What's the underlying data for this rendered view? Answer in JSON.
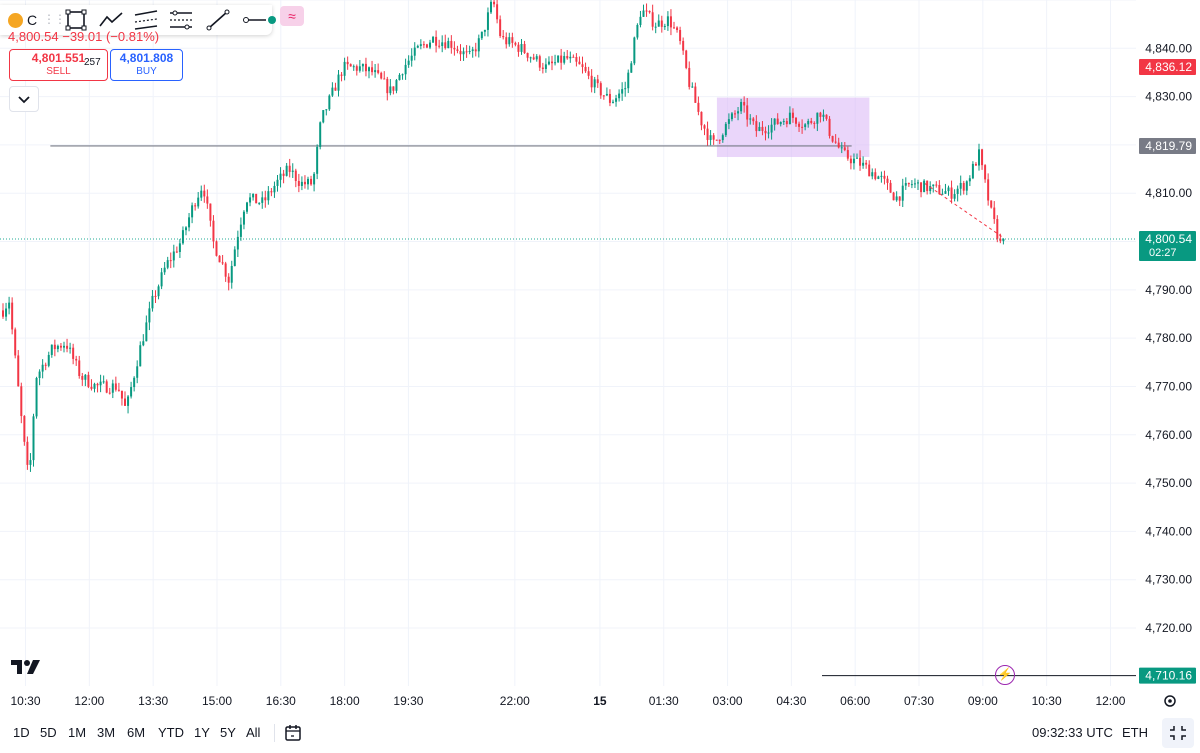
{
  "header": {
    "symbol_letter": "C",
    "last_price": "4,800.54",
    "change": "−39.01 (−0.81%)",
    "sell_price": "4,801.551",
    "sell_label": "SELL",
    "spread": "257",
    "buy_price": "4,801.808",
    "buy_label": "BUY"
  },
  "toolbar": {
    "tools": [
      "rectangle-icon",
      "path-icon",
      "parallel-channel-icon",
      "regression-icon",
      "trend-line-icon",
      "horizontal-ray-icon"
    ],
    "accent": "#9c27b0"
  },
  "colors": {
    "up": "#089981",
    "down": "#f23645",
    "stop_zone": "#f7a5ab",
    "profit_zone": "#a8dccf",
    "range_box": "#d9b4f5",
    "price_line": "#22ab94"
  },
  "chart_data": {
    "type": "candlestick",
    "ylim": [
      4708,
      4850
    ],
    "y_ticks": [
      "4,840.00",
      "4,830.00",
      "4,810.00",
      "4,800.00",
      "4,790.00",
      "4,780.00",
      "4,770.00",
      "4,760.00",
      "4,750.00",
      "4,740.00",
      "4,730.00",
      "4,720.00"
    ],
    "y_tick_values": [
      4840,
      4830,
      4810,
      4800,
      4790,
      4780,
      4770,
      4760,
      4750,
      4740,
      4730,
      4720
    ],
    "x_ticks": [
      "10:30",
      "12:00",
      "13:30",
      "15:00",
      "16:30",
      "18:00",
      "19:30",
      "22:00",
      "15",
      "01:30",
      "03:00",
      "04:30",
      "06:00",
      "07:30",
      "09:00",
      "10:30",
      "12:00"
    ],
    "x_tick_bold": [
      false,
      false,
      false,
      false,
      false,
      false,
      false,
      false,
      true,
      false,
      false,
      false,
      false,
      false,
      false,
      false,
      false
    ],
    "path": [
      [
        0,
        4785
      ],
      [
        8,
        4788
      ],
      [
        22,
        4760
      ],
      [
        28,
        4750
      ],
      [
        35,
        4772
      ],
      [
        52,
        4778
      ],
      [
        65,
        4779
      ],
      [
        80,
        4772
      ],
      [
        95,
        4770
      ],
      [
        105,
        4770
      ],
      [
        117,
        4770
      ],
      [
        125,
        4765
      ],
      [
        138,
        4777
      ],
      [
        152,
        4788
      ],
      [
        165,
        4795
      ],
      [
        180,
        4800
      ],
      [
        193,
        4808
      ],
      [
        202,
        4812
      ],
      [
        212,
        4800
      ],
      [
        228,
        4792
      ],
      [
        235,
        4800
      ],
      [
        245,
        4809
      ],
      [
        262,
        4808
      ],
      [
        275,
        4812
      ],
      [
        288,
        4815
      ],
      [
        300,
        4812
      ],
      [
        312,
        4812
      ],
      [
        320,
        4825
      ],
      [
        330,
        4830
      ],
      [
        342,
        4836
      ],
      [
        358,
        4836
      ],
      [
        372,
        4835
      ],
      [
        390,
        4831
      ],
      [
        402,
        4836
      ],
      [
        418,
        4840
      ],
      [
        432,
        4842
      ],
      [
        450,
        4841
      ],
      [
        468,
        4838
      ],
      [
        480,
        4842
      ],
      [
        492,
        4850
      ],
      [
        500,
        4842
      ],
      [
        520,
        4840
      ],
      [
        545,
        4836
      ],
      [
        565,
        4838
      ],
      [
        580,
        4836
      ],
      [
        595,
        4832
      ],
      [
        610,
        4829
      ],
      [
        625,
        4832
      ],
      [
        632,
        4840
      ],
      [
        640,
        4848
      ],
      [
        655,
        4845
      ],
      [
        668,
        4846
      ],
      [
        678,
        4842
      ],
      [
        688,
        4833
      ],
      [
        700,
        4825
      ],
      [
        712,
        4820
      ],
      [
        725,
        4824
      ],
      [
        740,
        4828
      ],
      [
        755,
        4823
      ],
      [
        770,
        4824
      ],
      [
        790,
        4826
      ],
      [
        805,
        4824
      ],
      [
        820,
        4827
      ],
      [
        830,
        4822
      ],
      [
        842,
        4818
      ],
      [
        860,
        4816
      ],
      [
        880,
        4813
      ],
      [
        895,
        4809
      ],
      [
        910,
        4812
      ],
      [
        930,
        4811
      ],
      [
        950,
        4810
      ],
      [
        965,
        4812
      ],
      [
        978,
        4818
      ],
      [
        985,
        4811
      ],
      [
        990,
        4806
      ],
      [
        1000,
        4799
      ]
    ],
    "annotations": {
      "price_line": {
        "value": 4800.54,
        "label": "4,800.54",
        "countdown": "02:27"
      },
      "stop_level": {
        "value": 4836.12,
        "label": "4,836.12"
      },
      "entry_level": {
        "value": 4819.79,
        "label": "4,819.79"
      },
      "target_level": {
        "value": 4710.16,
        "label": "4,710.16"
      },
      "range_box": {
        "from": "02:45",
        "to": "06:20",
        "high": 4829.8,
        "low": 4817.5
      },
      "position_from": "05:55",
      "position_to": "11:05"
    }
  },
  "bottom_bar": {
    "ranges": [
      "1D",
      "5D",
      "1M",
      "3M",
      "6M",
      "YTD",
      "1Y",
      "5Y",
      "All"
    ],
    "time": "09:32:33 UTC",
    "session": "ETH"
  }
}
